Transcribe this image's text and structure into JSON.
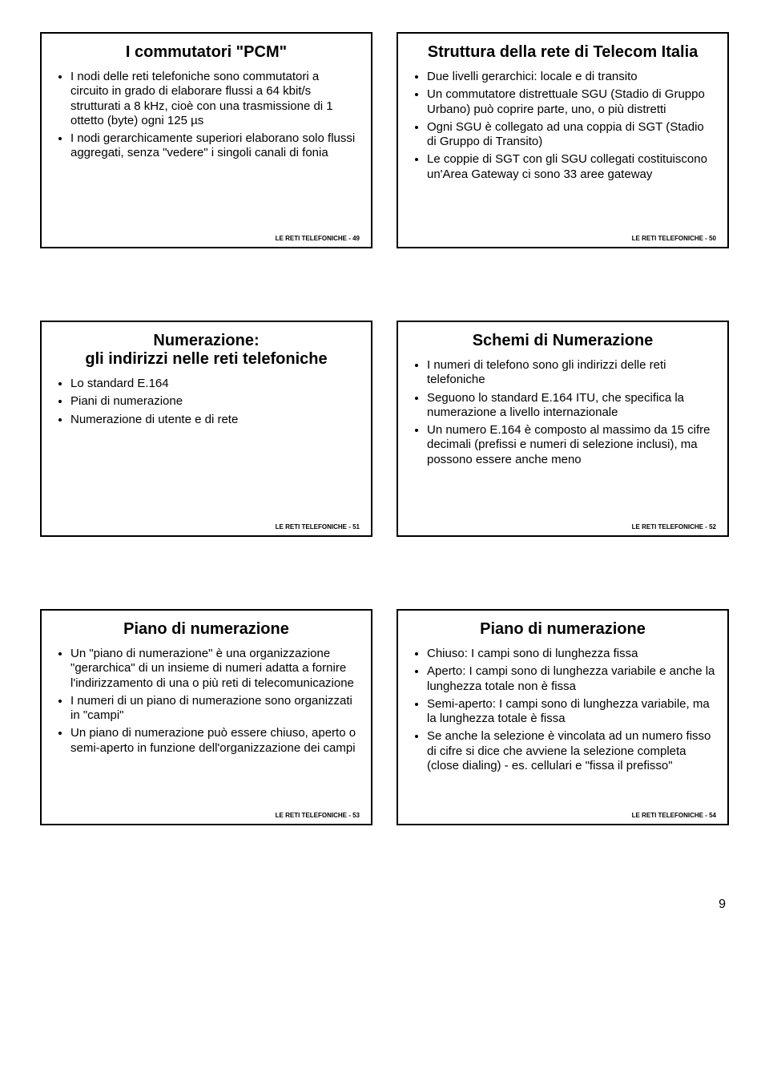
{
  "footer_prefix": "LE RETI TELEFONICHE - ",
  "page_number": "9",
  "slides": [
    {
      "title": "I commutatori \"PCM\"",
      "items": [
        "I nodi delle reti telefoniche sono commutatori a circuito in grado di elaborare flussi a 64 kbit/s strutturati a 8 kHz, cioè con una trasmissione di 1 ottetto (byte) ogni 125 µs",
        "I nodi gerarchicamente superiori elaborano solo flussi aggregati, senza \"vedere\" i singoli canali di fonia"
      ],
      "num": "49"
    },
    {
      "title": "Struttura della rete di Telecom Italia",
      "items": [
        "Due livelli gerarchici: locale e di transito",
        "Un commutatore distrettuale SGU (Stadio di Gruppo Urbano) può coprire parte, uno, o più distretti",
        "Ogni SGU è collegato ad una coppia di SGT (Stadio di Gruppo di Transito)",
        "Le coppie di SGT con gli SGU collegati costituiscono un'Area Gateway ci sono 33 aree gateway"
      ],
      "num": "50"
    },
    {
      "title": "Numerazione:\ngli indirizzi nelle reti telefoniche",
      "items": [
        "Lo standard E.164",
        "Piani di numerazione",
        "Numerazione di utente e di rete"
      ],
      "num": "51"
    },
    {
      "title": "Schemi di Numerazione",
      "items": [
        "I numeri di telefono sono gli indirizzi delle reti telefoniche",
        "Seguono lo standard E.164 ITU, che specifica la numerazione a livello internazionale",
        "Un numero E.164 è composto al massimo da 15 cifre decimali (prefissi e numeri di selezione inclusi), ma possono essere anche meno"
      ],
      "num": "52"
    },
    {
      "title": "Piano di numerazione",
      "items": [
        "Un \"piano di numerazione\" è una organizzazione \"gerarchica\" di un insieme di numeri adatta a fornire l'indirizzamento di una o più reti di telecomunicazione",
        "I numeri di un piano di numerazione sono organizzati in \"campi\"",
        "Un piano di numerazione può essere chiuso, aperto o semi-aperto in funzione dell'organizzazione dei campi"
      ],
      "num": "53"
    },
    {
      "title": "Piano di numerazione",
      "items": [
        "Chiuso: I campi sono di lunghezza fissa",
        "Aperto: I campi sono di lunghezza variabile e anche la lunghezza totale non è fissa",
        "Semi-aperto: I campi sono di lunghezza variabile, ma la lunghezza totale è fissa",
        "Se anche la selezione è vincolata ad un numero fisso di cifre si dice che avviene la selezione completa (close dialing) - es. cellulari e \"fissa il prefisso\""
      ],
      "num": "54"
    }
  ]
}
